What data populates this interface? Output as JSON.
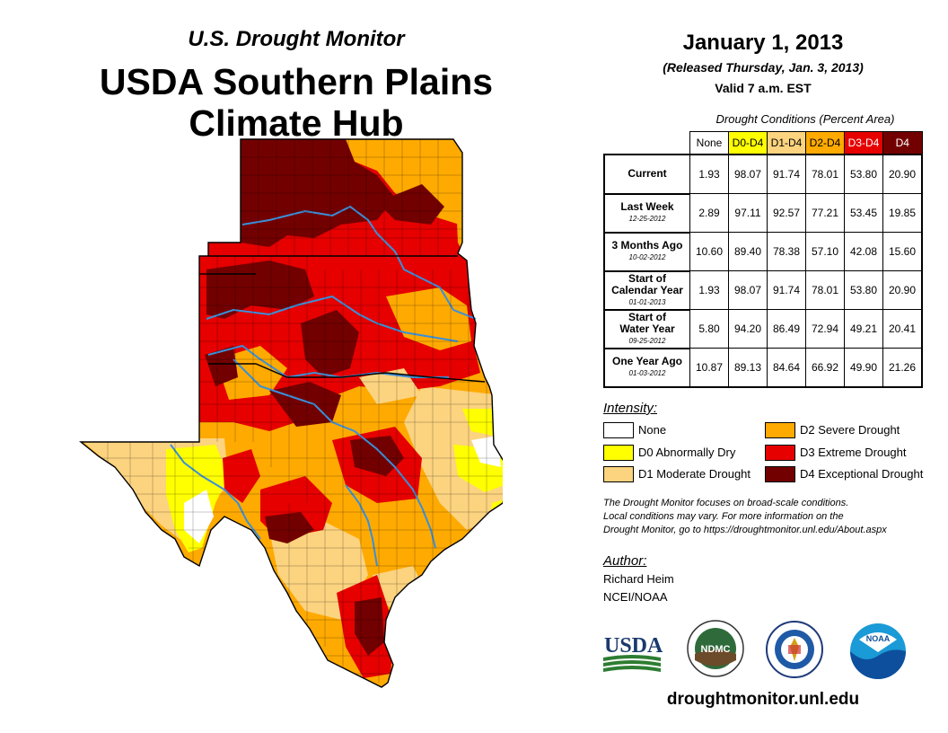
{
  "header": {
    "pre_title": "U.S. Drought Monitor",
    "title_line1": "USDA Southern Plains",
    "title_line2": "Climate Hub"
  },
  "info": {
    "date": "January 1, 2013",
    "released": "(Released Thursday, Jan. 3, 2013)",
    "valid": "Valid 7 a.m. EST"
  },
  "table": {
    "caption": "Drought Conditions (Percent Area)",
    "columns": [
      "None",
      "D0-D4",
      "D1-D4",
      "D2-D4",
      "D3-D4",
      "D4"
    ],
    "rows": [
      {
        "label": "Current",
        "sub": "",
        "values": [
          "1.93",
          "98.07",
          "91.74",
          "78.01",
          "53.80",
          "20.90"
        ]
      },
      {
        "label": "Last Week",
        "sub": "12-25-2012",
        "values": [
          "2.89",
          "97.11",
          "92.57",
          "77.21",
          "53.45",
          "19.85"
        ]
      },
      {
        "label": "3 Months Ago",
        "sub": "10-02-2012",
        "values": [
          "10.60",
          "89.40",
          "78.38",
          "57.10",
          "42.08",
          "15.60"
        ]
      },
      {
        "label": "Start of Calendar Year",
        "label1": "Start of",
        "label2": "Calendar Year",
        "sub": "01-01-2013",
        "values": [
          "1.93",
          "98.07",
          "91.74",
          "78.01",
          "53.80",
          "20.90"
        ]
      },
      {
        "label": "Start of Water Year",
        "label1": "Start of",
        "label2": "Water Year",
        "sub": "09-25-2012",
        "values": [
          "5.80",
          "94.20",
          "86.49",
          "72.94",
          "49.21",
          "20.41"
        ]
      },
      {
        "label": "One Year Ago",
        "sub": "01-03-2012",
        "values": [
          "10.87",
          "89.13",
          "84.64",
          "66.92",
          "49.90",
          "21.26"
        ]
      }
    ]
  },
  "legend": {
    "title": "Intensity:",
    "items": [
      {
        "label": "None",
        "color": "#ffffff"
      },
      {
        "label": "D0 Abnormally Dry",
        "color": "#ffff00"
      },
      {
        "label": "D1 Moderate Drought",
        "color": "#fcd37f"
      },
      {
        "label": "D2 Severe Drought",
        "color": "#ffaa00"
      },
      {
        "label": "D3 Extreme Drought",
        "color": "#e60000"
      },
      {
        "label": "D4 Exceptional Drought",
        "color": "#730000"
      }
    ]
  },
  "note": {
    "line1": "The Drought Monitor focuses on broad-scale conditions.",
    "line2": "Local conditions may vary. For more information on the",
    "line3": "Drought Monitor, go to https://droughtmonitor.unl.edu/About.aspx"
  },
  "author": {
    "title": "Author:",
    "name": "Richard Heim",
    "org": "NCEI/NOAA"
  },
  "logos": {
    "usda": "USDA",
    "ndmc": "NDMC",
    "noaa": "NOAA"
  },
  "footer": {
    "url": "droughtmonitor.unl.edu"
  }
}
